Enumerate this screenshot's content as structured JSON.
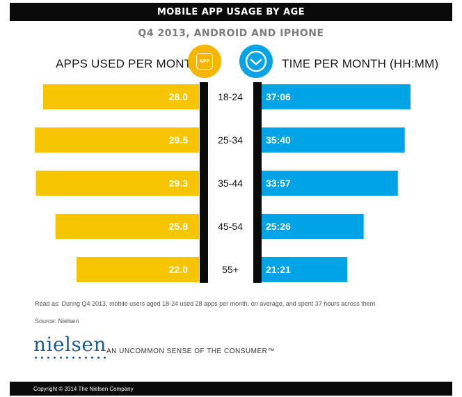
{
  "header": {
    "title": "MOBILE APP USAGE BY AGE",
    "subtitle": "Q4 2013, ANDROID AND IPHONE"
  },
  "icons": {
    "apps": "app-icon",
    "time": "clock-icon",
    "apps_icon_label": "APP"
  },
  "colors": {
    "apps": "#f7c500",
    "time": "#00a3e6",
    "divider": "#0a0a0a"
  },
  "chart_data": {
    "type": "bar",
    "categories": [
      "18-24",
      "25-34",
      "35-44",
      "45-54",
      "55+"
    ],
    "series": [
      {
        "name": "APPS USED PER MONTH",
        "values": [
          28.0,
          29.5,
          29.3,
          25.8,
          22.0
        ],
        "labels": [
          "28.0",
          "29.5",
          "29.3",
          "25.8",
          "22.0"
        ]
      },
      {
        "name": "TIME PER MONTH (HH:MM)",
        "values": [
          37.1,
          35.67,
          33.95,
          25.43,
          21.35
        ],
        "labels": [
          "37:06",
          "35:40",
          "33:57",
          "25:26",
          "21:21"
        ]
      }
    ]
  },
  "footnote": {
    "read_as": "Read as: During Q4 2013, mobile users aged 18-24 used 28 apps per month, on average, and spent 37 hours across them",
    "source": "Source: Nielsen"
  },
  "brand": {
    "logo": "nielsen",
    "tagline": "AN UNCOMMON SENSE OF THE CONSUMER™",
    "copyright": "Copyright © 2014 The Nielsen Company"
  }
}
